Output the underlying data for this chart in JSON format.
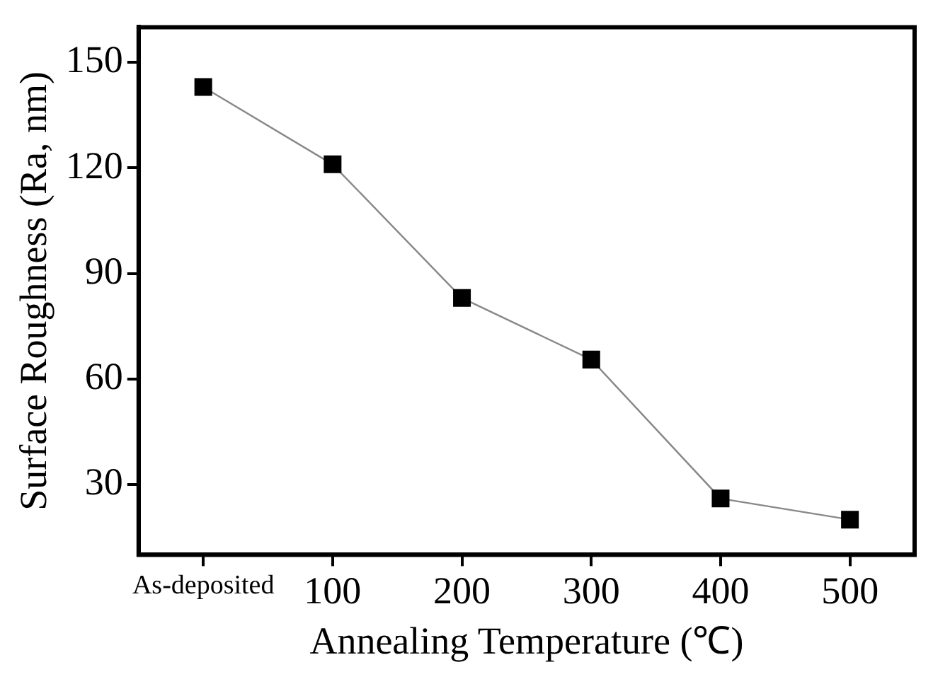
{
  "chart_data": {
    "type": "line",
    "xlabel": "Annealing Temperature (℃)",
    "ylabel": "Surface Roughness (Ra, nm)",
    "categories": [
      "As-deposited",
      "100",
      "200",
      "300",
      "400",
      "500"
    ],
    "series": [
      {
        "color": "#000000",
        "values": [
          143,
          121,
          83,
          65.5,
          26,
          20
        ]
      }
    ],
    "ylim": [
      10,
      160
    ],
    "yticks": [
      30,
      60,
      90,
      120,
      150
    ],
    "grid": false,
    "legend": false,
    "marker": "square",
    "line_style": "solid"
  }
}
